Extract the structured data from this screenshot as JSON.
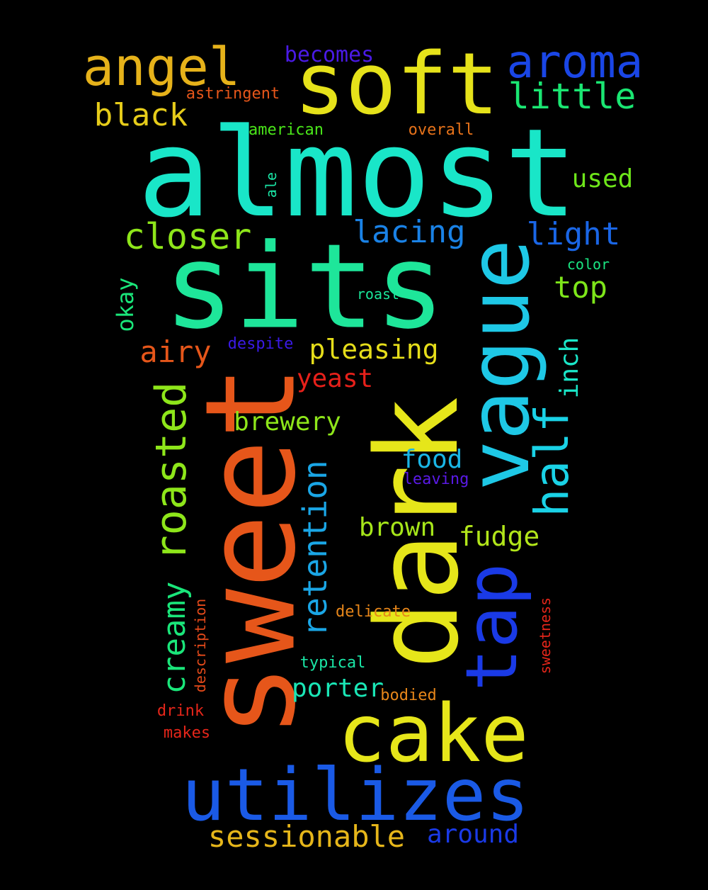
{
  "words": [
    {
      "text": "almost",
      "color": "#19e6c8"
    },
    {
      "text": "sits",
      "color": "#1ee69a"
    },
    {
      "text": "sweet",
      "color": "#e6561a"
    },
    {
      "text": "dark",
      "color": "#e6e61a"
    },
    {
      "text": "vague",
      "color": "#1ec8e6"
    },
    {
      "text": "soft",
      "color": "#e6e21a"
    },
    {
      "text": "cake",
      "color": "#e6e61a"
    },
    {
      "text": "utilizes",
      "color": "#1a5ae6"
    },
    {
      "text": "tap",
      "color": "#1a3ae6"
    },
    {
      "text": "angel",
      "color": "#e6b21a"
    },
    {
      "text": "aroma",
      "color": "#1a46e6"
    },
    {
      "text": "half",
      "color": "#1ad2e6"
    },
    {
      "text": "roasted",
      "color": "#8ee61a"
    },
    {
      "text": "retention",
      "color": "#1aa6e6"
    },
    {
      "text": "creamy",
      "color": "#1ae67a"
    },
    {
      "text": "little",
      "color": "#1ae672"
    },
    {
      "text": "closer",
      "color": "#8ee61a"
    },
    {
      "text": "black",
      "color": "#e6cc1a"
    },
    {
      "text": "lacing",
      "color": "#1a82e6"
    },
    {
      "text": "light",
      "color": "#1a66e6"
    },
    {
      "text": "sessionable",
      "color": "#e6b61a"
    },
    {
      "text": "pleasing",
      "color": "#e6de1a"
    },
    {
      "text": "airy",
      "color": "#e6561a"
    },
    {
      "text": "top",
      "color": "#7ee61a"
    },
    {
      "text": "brewery",
      "color": "#8ee61a"
    },
    {
      "text": "fudge",
      "color": "#b2e61a"
    },
    {
      "text": "around",
      "color": "#1a3ae6"
    },
    {
      "text": "yeast",
      "color": "#e6201a"
    },
    {
      "text": "inch",
      "color": "#1ae6c8"
    },
    {
      "text": "brown",
      "color": "#a6e61a"
    },
    {
      "text": "food",
      "color": "#1ab6e6"
    },
    {
      "text": "porter",
      "color": "#1ae6b6"
    },
    {
      "text": "used",
      "color": "#6ee61a"
    },
    {
      "text": "okay",
      "color": "#1ae67a"
    },
    {
      "text": "becomes",
      "color": "#4a1ae6"
    },
    {
      "text": "astringent",
      "color": "#e6561a"
    },
    {
      "text": "american",
      "color": "#4ae61a"
    },
    {
      "text": "overall",
      "color": "#e6721a"
    },
    {
      "text": "ale",
      "color": "#1ae6a6"
    },
    {
      "text": "color",
      "color": "#1ae682"
    },
    {
      "text": "roast",
      "color": "#1ae69a"
    },
    {
      "text": "despite",
      "color": "#3a1ae6"
    },
    {
      "text": "leaving",
      "color": "#5a1ae6"
    },
    {
      "text": "delicate",
      "color": "#e6861a"
    },
    {
      "text": "description",
      "color": "#e64a1a"
    },
    {
      "text": "sweetness",
      "color": "#e6261a"
    },
    {
      "text": "typical",
      "color": "#1ae6a6"
    },
    {
      "text": "bodied",
      "color": "#e6861a"
    },
    {
      "text": "drink",
      "color": "#e6261a"
    },
    {
      "text": "makes",
      "color": "#e6261a"
    }
  ]
}
